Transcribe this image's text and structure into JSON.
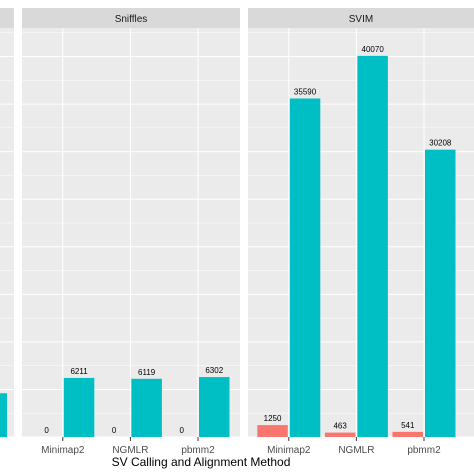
{
  "chart_data": {
    "type": "bar",
    "xlabel": "SV Calling and Alignment Method",
    "ylabel": "",
    "ylim": [
      0,
      43000
    ],
    "grid": true,
    "panel_background": "#ebebeb",
    "strip_background": "#d9d9d9",
    "colors": [
      "#f8766d",
      "#00bfc4"
    ],
    "categories": [
      "Minimap2",
      "NGMLR",
      "pbmm2"
    ],
    "panels": [
      {
        "name": "",
        "partial": true,
        "visible_categories": [],
        "values_shown": [
          {
            "category": "pbmm2",
            "series": 1,
            "value": 4600
          }
        ],
        "labels": []
      },
      {
        "name": "Sniffles",
        "categories": [
          "Minimap2",
          "NGMLR",
          "pbmm2"
        ],
        "series": [
          {
            "values": [
              0,
              0,
              0
            ],
            "labels": [
              "0",
              "0",
              "0"
            ]
          },
          {
            "values": [
              6211,
              6119,
              6302
            ],
            "labels": [
              "6211",
              "6119",
              "6302"
            ]
          }
        ]
      },
      {
        "name": "SVIM",
        "categories": [
          "Minimap2",
          "NGMLR",
          "pbmm2"
        ],
        "series": [
          {
            "values": [
              1250,
              463,
              541
            ],
            "labels": [
              "1250",
              "463",
              "541"
            ]
          },
          {
            "values": [
              35590,
              40070,
              30208
            ],
            "labels": [
              "35590",
              "40070",
              "30208"
            ]
          }
        ]
      }
    ]
  }
}
